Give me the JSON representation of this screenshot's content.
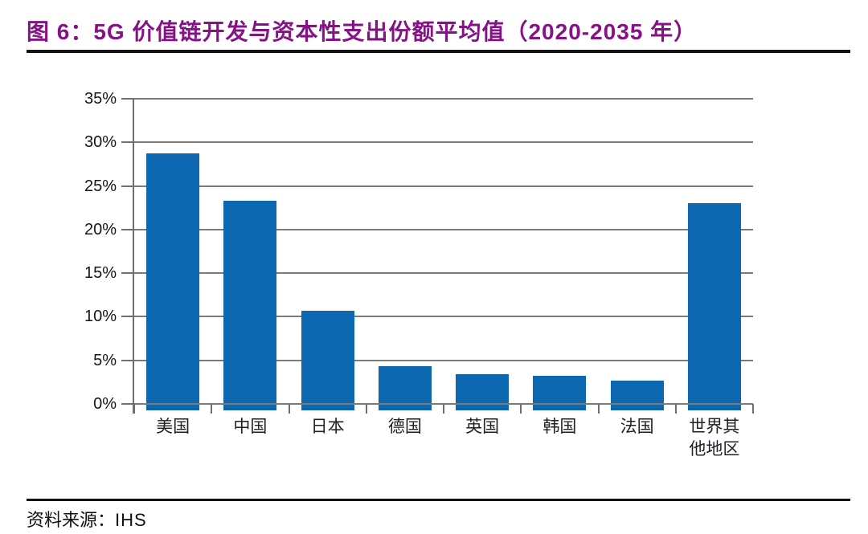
{
  "header": {
    "title": "图 6：5G 价值链开发与资本性支出份额平均值（2020-2035 年）"
  },
  "chart_data": {
    "type": "bar",
    "title": "5G 价值链开发与资本性支出份额平均值（2020-2035 年）",
    "categories": [
      "美国",
      "中国",
      "日本",
      "德国",
      "英国",
      "韩国",
      "法国",
      "世界其他地区"
    ],
    "values": [
      28.7,
      23.3,
      10.7,
      4.3,
      3.4,
      3.2,
      2.7,
      23.0
    ],
    "unit": "%",
    "ylim": [
      0,
      35
    ],
    "ytick_step": 5,
    "ytick_labels": [
      "0%",
      "5%",
      "10%",
      "15%",
      "20%",
      "25%",
      "30%",
      "35%"
    ],
    "xlabel": "",
    "ylabel": "",
    "grid": "horizontal",
    "legend": "none"
  },
  "footer": {
    "source_label": "资料来源：",
    "source_value": "IHS"
  },
  "colors": {
    "title": "#851385",
    "bar": "#0D67B1",
    "gridline": "#7B7B7B",
    "axis": "#6F6F6F",
    "rule": "#111111"
  }
}
